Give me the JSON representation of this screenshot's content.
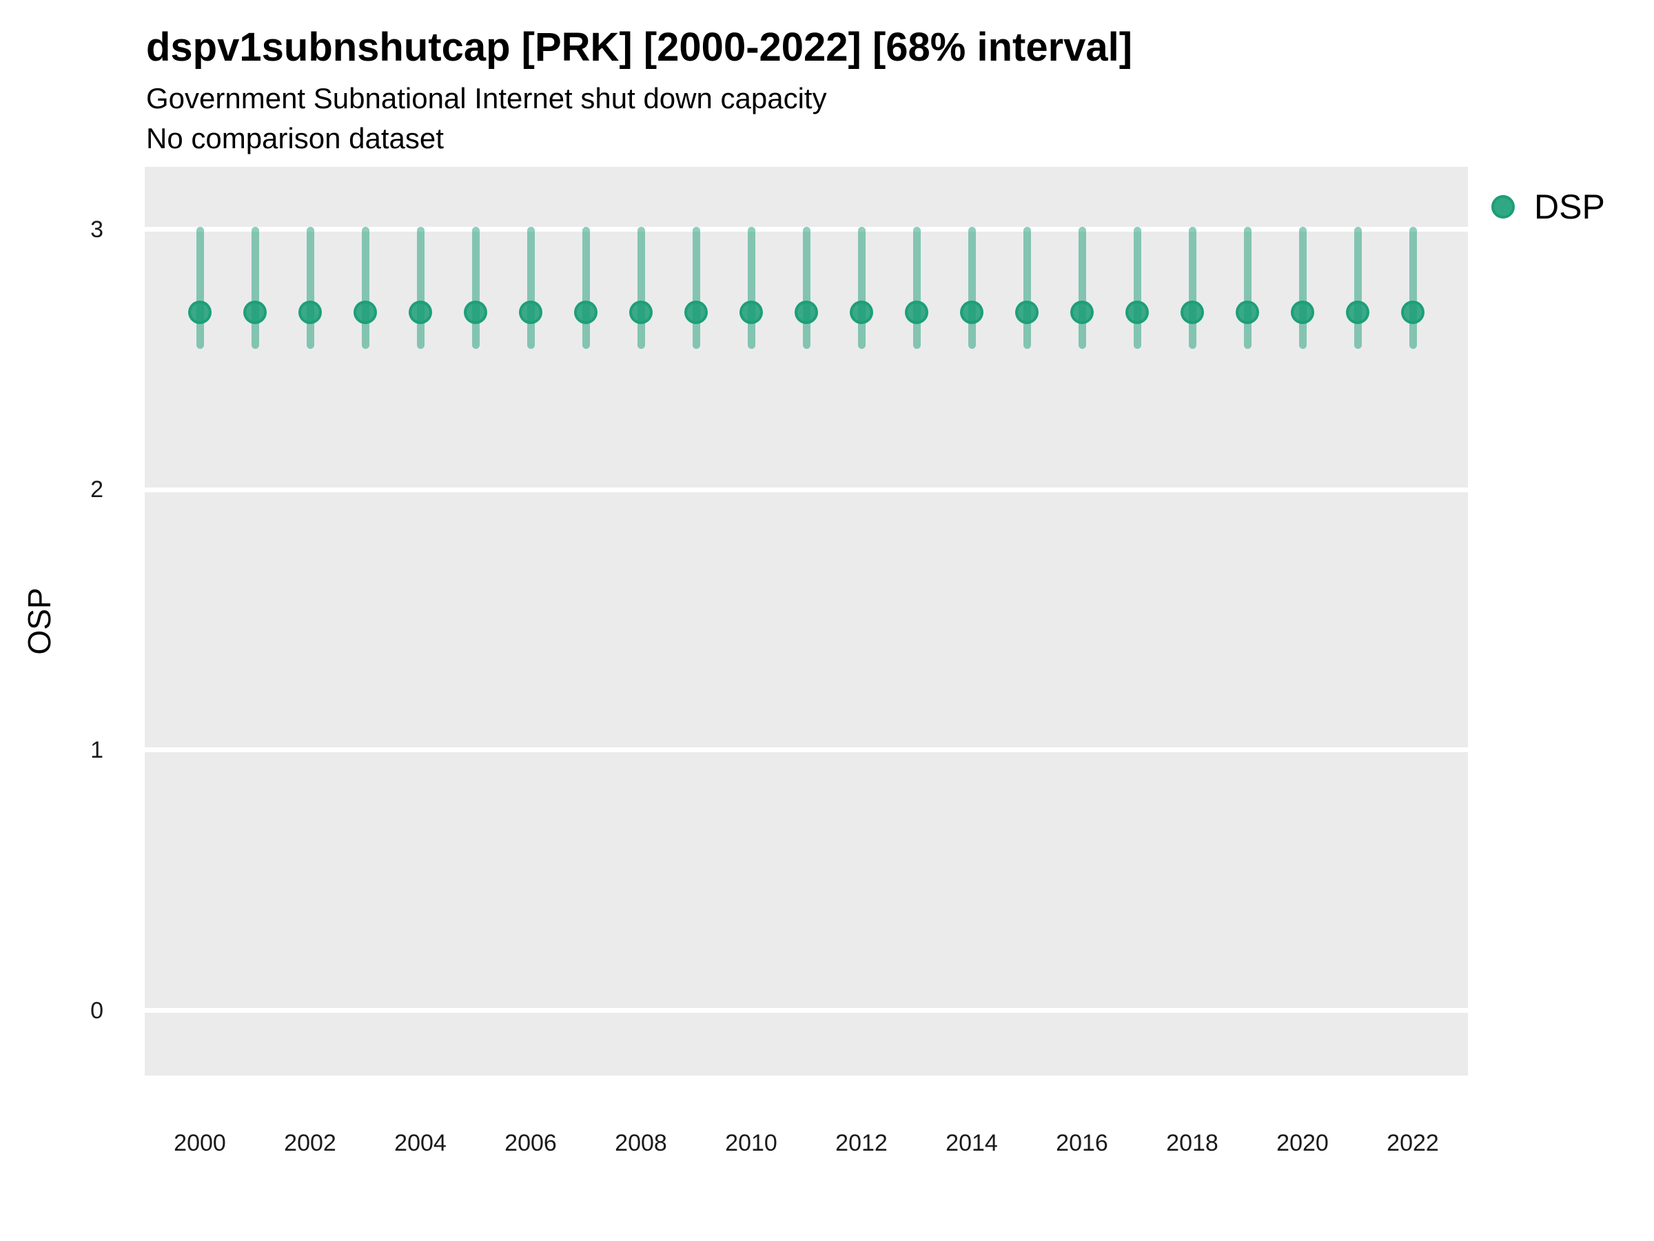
{
  "header": {
    "title": "dspv1subnshutcap [PRK] [2000-2022] [68% interval]",
    "subtitle": "Government Subnational Internet shut down capacity",
    "note": "No comparison dataset"
  },
  "legend": {
    "label": "DSP",
    "marker_color": "#1B9E77",
    "position": "top-right-of-panel"
  },
  "colors": {
    "panel_background": "#EBEBEB",
    "gridline": "#FFFFFF",
    "series_green": "#1B9E77",
    "text": "#000000"
  },
  "chart_data": {
    "type": "pointrange",
    "title": "dspv1subnshutcap [PRK] [2000-2022] [68% interval]",
    "subtitle": "Government Subnational Internet shut down capacity",
    "note": "No comparison dataset",
    "interval_level": "68%",
    "xlabel": "",
    "ylabel": "OSP",
    "ylim": [
      -0.25,
      3.24
    ],
    "yticks": [
      3,
      2,
      1,
      0
    ],
    "xticks_labeled": [
      2000,
      2002,
      2004,
      2006,
      2008,
      2010,
      2012,
      2014,
      2016,
      2018,
      2020,
      2022
    ],
    "grid": "horizontal major gridlines only, white on grey panel; no vertical or minor gridlines; no axis lines or tick marks",
    "legend_position": "right",
    "series": [
      {
        "name": "DSP",
        "color": "#1B9E77",
        "points": [
          {
            "year": 2000,
            "est": 2.68,
            "lo": 2.54,
            "hi": 3.01
          },
          {
            "year": 2001,
            "est": 2.68,
            "lo": 2.54,
            "hi": 3.01
          },
          {
            "year": 2002,
            "est": 2.68,
            "lo": 2.54,
            "hi": 3.01
          },
          {
            "year": 2003,
            "est": 2.68,
            "lo": 2.54,
            "hi": 3.01
          },
          {
            "year": 2004,
            "est": 2.68,
            "lo": 2.54,
            "hi": 3.01
          },
          {
            "year": 2005,
            "est": 2.68,
            "lo": 2.54,
            "hi": 3.01
          },
          {
            "year": 2006,
            "est": 2.68,
            "lo": 2.54,
            "hi": 3.01
          },
          {
            "year": 2007,
            "est": 2.68,
            "lo": 2.54,
            "hi": 3.01
          },
          {
            "year": 2008,
            "est": 2.68,
            "lo": 2.54,
            "hi": 3.01
          },
          {
            "year": 2009,
            "est": 2.68,
            "lo": 2.54,
            "hi": 3.01
          },
          {
            "year": 2010,
            "est": 2.68,
            "lo": 2.54,
            "hi": 3.01
          },
          {
            "year": 2011,
            "est": 2.68,
            "lo": 2.54,
            "hi": 3.01
          },
          {
            "year": 2012,
            "est": 2.68,
            "lo": 2.54,
            "hi": 3.01
          },
          {
            "year": 2013,
            "est": 2.68,
            "lo": 2.54,
            "hi": 3.01
          },
          {
            "year": 2014,
            "est": 2.68,
            "lo": 2.54,
            "hi": 3.01
          },
          {
            "year": 2015,
            "est": 2.68,
            "lo": 2.54,
            "hi": 3.01
          },
          {
            "year": 2016,
            "est": 2.68,
            "lo": 2.54,
            "hi": 3.01
          },
          {
            "year": 2017,
            "est": 2.68,
            "lo": 2.54,
            "hi": 3.01
          },
          {
            "year": 2018,
            "est": 2.68,
            "lo": 2.54,
            "hi": 3.01
          },
          {
            "year": 2019,
            "est": 2.68,
            "lo": 2.54,
            "hi": 3.01
          },
          {
            "year": 2020,
            "est": 2.68,
            "lo": 2.54,
            "hi": 3.01
          },
          {
            "year": 2021,
            "est": 2.68,
            "lo": 2.54,
            "hi": 3.01
          },
          {
            "year": 2022,
            "est": 2.68,
            "lo": 2.54,
            "hi": 3.01
          }
        ]
      }
    ]
  }
}
